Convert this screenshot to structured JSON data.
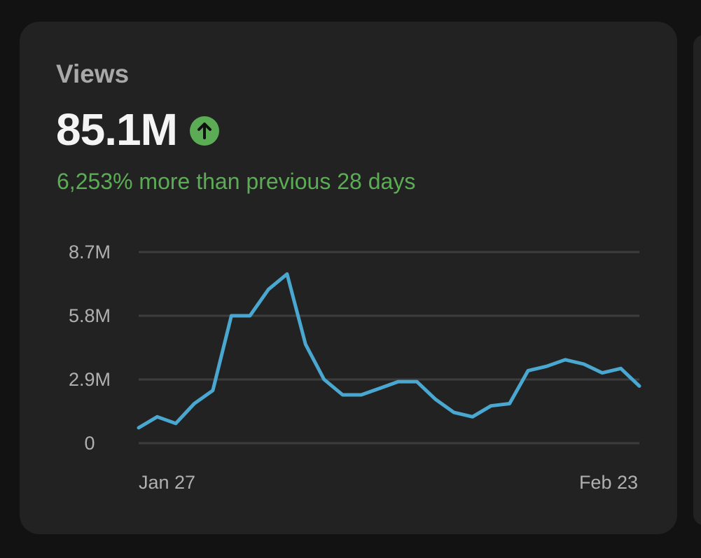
{
  "card": {
    "title": "Views",
    "value": "85.1M",
    "trend": "up",
    "trend_icon": "arrow-up-circle-icon",
    "change_text": "6,253% more than previous 28 days"
  },
  "colors": {
    "background": "#121212",
    "card": "#222222",
    "title": "#a9a9a9",
    "value": "#f4f4f4",
    "positive": "#5cab55",
    "line": "#4aa7d0",
    "grid": "#3d3d3d",
    "tick": "#b0b0b0"
  },
  "chart_data": {
    "type": "line",
    "title": "Views",
    "xlabel": "",
    "ylabel": "",
    "ylim": [
      0,
      8.7
    ],
    "y_unit": "M",
    "y_ticks": [
      {
        "value": 0,
        "label": "0"
      },
      {
        "value": 2.9,
        "label": "2.9M"
      },
      {
        "value": 5.8,
        "label": "5.8M"
      },
      {
        "value": 8.7,
        "label": "8.7M"
      }
    ],
    "x_tick_labels": [
      "Jan 27",
      "Feb 23"
    ],
    "grid": true,
    "series": [
      {
        "name": "Views",
        "values": [
          0.7,
          1.2,
          0.9,
          1.8,
          2.4,
          5.8,
          5.8,
          7.0,
          7.7,
          4.5,
          2.9,
          2.2,
          2.2,
          2.5,
          2.8,
          2.8,
          2.0,
          1.4,
          1.2,
          1.7,
          1.8,
          3.3,
          3.5,
          3.8,
          3.6,
          3.2,
          3.4,
          2.6
        ]
      }
    ]
  }
}
